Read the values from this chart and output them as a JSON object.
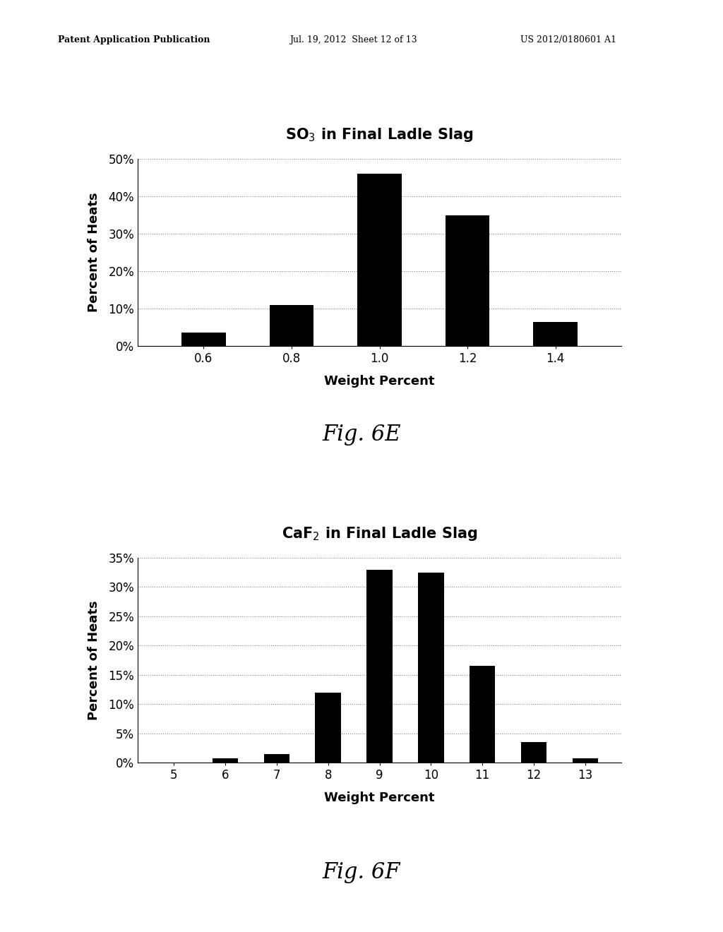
{
  "chart1": {
    "title": "SO$_3$ in Final Ladle Slag",
    "xlabel": "Weight Percent",
    "ylabel": "Percent of Heats",
    "categories": [
      0.6,
      0.8,
      1.0,
      1.2,
      1.4
    ],
    "values": [
      3.5,
      11.0,
      46.0,
      35.0,
      6.5
    ],
    "ylim": [
      0,
      50
    ],
    "yticks": [
      0,
      10,
      20,
      30,
      40,
      50
    ],
    "ytick_labels": [
      "0%",
      "10%",
      "20%",
      "30%",
      "40%",
      "50%"
    ],
    "bar_color": "#000000",
    "bar_width": 0.1,
    "fig_label": "Fig. 6E"
  },
  "chart2": {
    "title": "CaF$_2$ in Final Ladle Slag",
    "xlabel": "Weight Percent",
    "ylabel": "Percent of Heats",
    "categories": [
      5,
      6,
      7,
      8,
      9,
      10,
      11,
      12,
      13
    ],
    "values": [
      0.0,
      0.7,
      1.5,
      12.0,
      33.0,
      32.5,
      16.5,
      3.5,
      0.7
    ],
    "ylim": [
      0,
      35
    ],
    "yticks": [
      0,
      5,
      10,
      15,
      20,
      25,
      30,
      35
    ],
    "ytick_labels": [
      "0%",
      "5%",
      "10%",
      "15%",
      "20%",
      "25%",
      "30%",
      "35%"
    ],
    "bar_color": "#000000",
    "bar_width": 0.5,
    "fig_label": "Fig. 6F"
  },
  "header_left": "Patent Application Publication",
  "header_mid": "Jul. 19, 2012  Sheet 12 of 13",
  "header_right": "US 2012/0180601 A1",
  "background_color": "#ffffff"
}
